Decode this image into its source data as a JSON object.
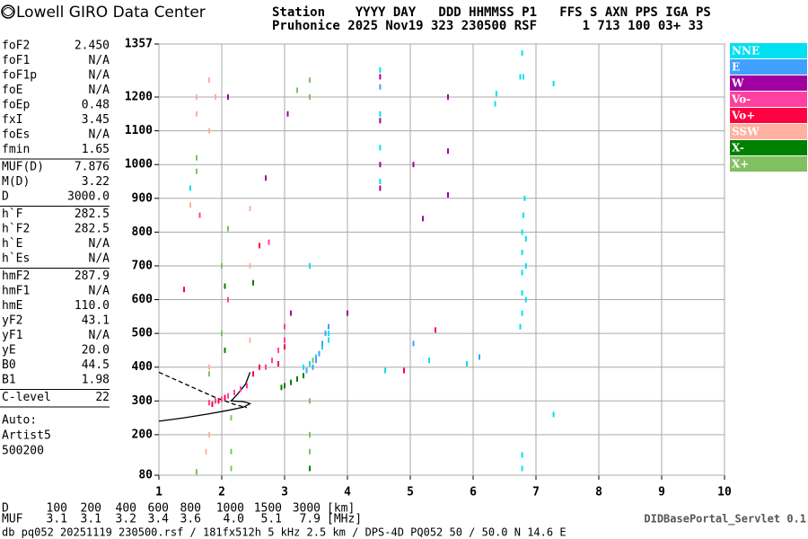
{
  "header": {
    "brand": "Lowell GIRO Data Center",
    "row1": "Station    YYYY DAY   DDD HHMMSS P1   FFS S AXN PPS IGA PS",
    "row2": "Pruhonice 2025 Nov19 323 230500 RSF      1 713 100 03+ 33"
  },
  "parameters": [
    [
      [
        "foF2",
        "2.450"
      ],
      [
        "foF1",
        "N/A"
      ],
      [
        "foF1p",
        "N/A"
      ],
      [
        "foE",
        "N/A"
      ],
      [
        "foEp",
        "0.48"
      ],
      [
        "fxI",
        "3.45"
      ],
      [
        "foEs",
        "N/A"
      ],
      [
        "fmin",
        "1.65"
      ]
    ],
    [
      [
        "MUF(D)",
        "7.876"
      ],
      [
        "M(D)",
        "3.22"
      ],
      [
        "D",
        "3000.0"
      ]
    ],
    [
      [
        "h`F",
        "282.5"
      ],
      [
        "h`F2",
        "282.5"
      ],
      [
        "h`E",
        "N/A"
      ],
      [
        "h`Es",
        "N/A"
      ]
    ],
    [
      [
        "hmF2",
        "287.9"
      ],
      [
        "hmF1",
        "N/A"
      ],
      [
        "hmE",
        "110.0"
      ],
      [
        "yF2",
        "43.1"
      ],
      [
        "yF1",
        "N/A"
      ],
      [
        "yE",
        "20.0"
      ],
      [
        "B0",
        "44.5"
      ],
      [
        "B1",
        "1.98"
      ]
    ],
    [
      [
        "C-level",
        "22"
      ]
    ]
  ],
  "autoscaling": [
    "Auto:",
    "Artist5",
    "500200"
  ],
  "distance_table": {
    "d_label": "D",
    "d_values": [
      "100",
      "200",
      "400",
      "600",
      "800",
      "1000",
      "1500",
      "3000"
    ],
    "d_unit": "[km]",
    "muf_label": "MUF",
    "muf_values": [
      "3.1",
      "3.1",
      "3.2",
      "3.4",
      "3.6",
      "4.0",
      "5.1",
      "7.9"
    ],
    "muf_unit": "[MHz]"
  },
  "footer": {
    "info": "db pq052 20251119 230500.rsf / 181fx512h 5 kHz 2.5 km / DPS-4D PQ052 50 / 50.0 N 14.6 E",
    "servlet": "DIDBasePortal_Servlet 0.1"
  },
  "chart_data": {
    "type": "scatter",
    "xlim": [
      1,
      10
    ],
    "xticks": [
      1,
      2,
      3,
      4,
      5,
      6,
      7,
      8,
      9,
      10
    ],
    "ylim": [
      80,
      1357
    ],
    "yticks": [
      80,
      200,
      300,
      400,
      500,
      600,
      700,
      800,
      900,
      1000,
      1100,
      1200,
      1357
    ],
    "grid": true,
    "series": [
      {
        "name": "NNE",
        "color": "#00e0f0",
        "x": [
          6.78,
          6.78,
          6.78,
          6.78,
          6.78,
          6.8,
          6.82,
          6.75,
          6.84,
          6.84,
          6.84,
          6.75,
          6.8,
          6.78,
          6.35,
          6.37,
          7.28,
          7.28,
          6.78,
          6.78,
          3.7,
          3.7,
          3.6,
          3.5,
          3.4,
          3.3,
          4.52,
          4.52,
          4.52,
          4.52,
          4.6,
          5.3,
          5.9,
          3.4,
          1.5
        ],
        "y": [
          560,
          620,
          680,
          740,
          800,
          850,
          900,
          520,
          600,
          700,
          780,
          1260,
          1260,
          1330,
          1180,
          1210,
          1240,
          260,
          100,
          140,
          480,
          500,
          460,
          430,
          410,
          400,
          1280,
          1150,
          1050,
          950,
          390,
          420,
          410,
          700,
          930
        ]
      },
      {
        "name": "E",
        "color": "#40a0ff",
        "x": [
          3.55,
          3.6,
          3.65,
          3.5,
          3.45,
          3.7,
          3.35,
          4.52,
          5.05,
          6.1
        ],
        "y": [
          440,
          470,
          500,
          420,
          400,
          520,
          390,
          1230,
          470,
          430
        ]
      },
      {
        "name": "W",
        "color": "#a000a0",
        "x": [
          4.52,
          4.52,
          4.52,
          4.52,
          5.6,
          5.6,
          5.6,
          3.05,
          2.7,
          3.1,
          2.1,
          4.0,
          5.05,
          5.2
        ],
        "y": [
          1260,
          1130,
          1000,
          930,
          1040,
          910,
          1200,
          1150,
          960,
          560,
          1200,
          560,
          1000,
          840
        ]
      },
      {
        "name": "Vo-",
        "color": "#ff40a0",
        "x": [
          1.8,
          1.9,
          2.0,
          2.1,
          2.2,
          2.3,
          2.4,
          2.7,
          2.8,
          2.9,
          3.0,
          3.0,
          2.1,
          2.75,
          1.65
        ],
        "y": [
          295,
          300,
          305,
          315,
          325,
          335,
          345,
          400,
          420,
          450,
          480,
          520,
          600,
          770,
          850
        ]
      },
      {
        "name": "Vo+",
        "color": "#ff0040",
        "x": [
          1.85,
          1.95,
          2.05,
          2.5,
          2.6,
          2.9,
          3.0,
          4.9,
          5.4,
          2.6,
          1.4
        ],
        "y": [
          290,
          300,
          310,
          380,
          400,
          410,
          460,
          390,
          510,
          760,
          630
        ]
      },
      {
        "name": "SSW",
        "color": "#ffb0a0",
        "x": [
          1.6,
          1.6,
          1.8,
          1.8,
          1.9,
          2.45,
          2.45,
          2.5,
          1.8,
          1.8,
          1.75,
          2.45,
          1.5
        ],
        "y": [
          1200,
          1150,
          1100,
          1250,
          1200,
          870,
          700,
          650,
          400,
          200,
          150,
          480,
          880
        ]
      },
      {
        "name": "X-",
        "color": "#008000",
        "x": [
          2.95,
          3.0,
          3.1,
          3.2,
          3.3,
          2.05,
          2.05,
          3.4,
          2.5
        ],
        "y": [
          340,
          345,
          355,
          365,
          375,
          640,
          450,
          100,
          650
        ]
      },
      {
        "name": "X+",
        "color": "#80c060",
        "x": [
          1.6,
          1.6,
          2.1,
          2.0,
          3.4,
          3.4,
          3.4,
          3.4,
          3.4,
          2.15,
          2.15,
          2.15,
          1.6,
          1.8,
          2.0,
          3.45,
          3.2
        ],
        "y": [
          1020,
          980,
          810,
          700,
          1200,
          1250,
          300,
          200,
          150,
          250,
          150,
          100,
          90,
          380,
          500,
          420,
          1220
        ]
      }
    ],
    "curves": [
      {
        "style": "solid",
        "x": [
          1,
          1.4,
          1.8,
          2.1,
          2.35,
          2.45,
          2.35,
          2.15,
          2.25,
          2.38,
          2.45
        ],
        "y": [
          240,
          250,
          262,
          272,
          282,
          292,
          298,
          300,
          320,
          350,
          385
        ]
      },
      {
        "style": "dashed",
        "x": [
          1,
          1.3,
          1.6,
          1.9,
          2.2,
          2.4
        ],
        "y": [
          385,
          360,
          335,
          310,
          290,
          280
        ]
      }
    ]
  }
}
